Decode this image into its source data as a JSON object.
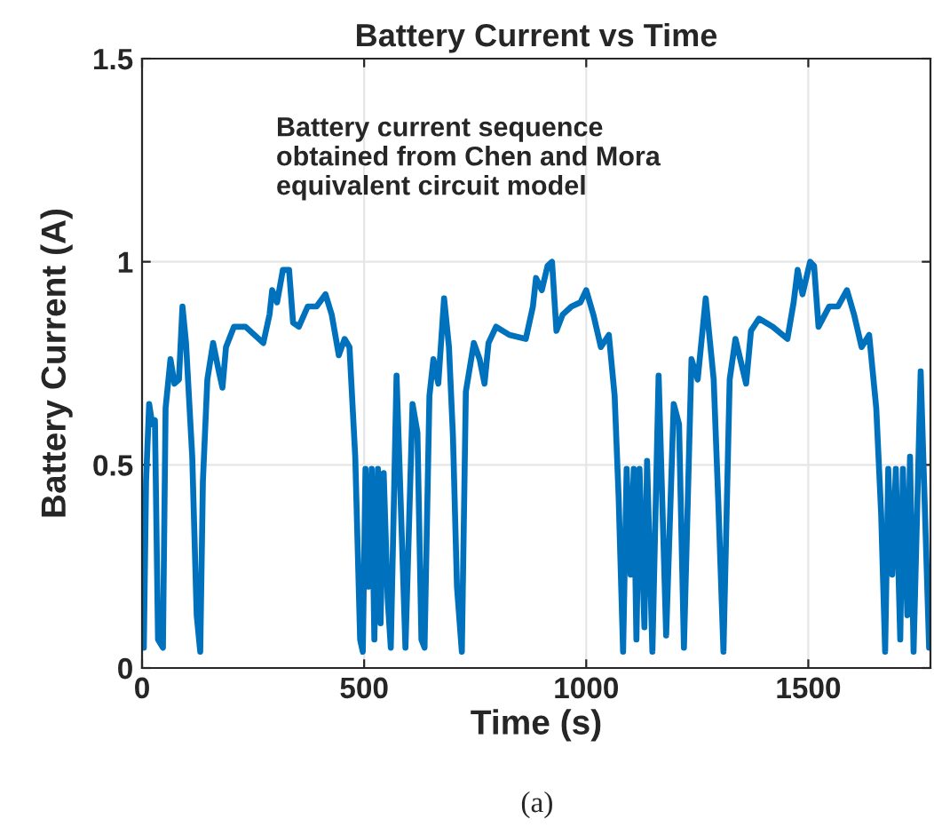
{
  "chart_data": {
    "type": "line",
    "title": "Battery Current vs Time",
    "xlabel": "Time (s)",
    "ylabel": "Battery Current (A)",
    "annotations": [
      "Battery current sequence\nobtained from Chen and Mora\nequivalent circuit model",
      "(a)"
    ],
    "xlim": [
      0,
      1775
    ],
    "ylim": [
      0,
      1.5
    ],
    "xticks": [
      0,
      500,
      1000,
      1500
    ],
    "yticks": [
      0,
      0.5,
      1,
      1.5
    ],
    "grid": true,
    "series": [
      {
        "color": "#0072bd",
        "x": [
          4,
          9,
          16,
          23,
          29,
          36,
          47,
          53,
          64,
          73,
          83,
          91,
          99,
          113,
          123,
          131,
          137,
          147,
          160,
          171,
          181,
          189,
          207,
          233,
          273,
          287,
          293,
          304,
          317,
          331,
          340,
          353,
          373,
          393,
          413,
          427,
          443,
          456,
          467,
          480,
          491,
          497,
          503,
          509,
          517,
          523,
          531,
          537,
          544,
          553,
          560,
          573,
          593,
          609,
          620,
          629,
          636,
          647,
          656,
          667,
          680,
          691,
          700,
          709,
          720,
          729,
          747,
          760,
          771,
          780,
          797,
          827,
          864,
          880,
          887,
          900,
          913,
          923,
          933,
          947,
          967,
          987,
          1000,
          1016,
          1033,
          1051,
          1064,
          1073,
          1083,
          1091,
          1100,
          1107,
          1113,
          1120,
          1131,
          1137,
          1149,
          1163,
          1180,
          1197,
          1209,
          1220,
          1237,
          1251,
          1269,
          1287,
          1297,
          1309,
          1323,
          1336,
          1360,
          1371,
          1389,
          1420,
          1453,
          1467,
          1476,
          1487,
          1504,
          1513,
          1523,
          1547,
          1567,
          1587,
          1603,
          1620,
          1637,
          1653,
          1664,
          1673,
          1680,
          1689,
          1697,
          1707,
          1713,
          1723,
          1729,
          1737,
          1753,
          1772
        ],
        "values": [
          0.05,
          0.46,
          0.65,
          0.6,
          0.61,
          0.07,
          0.05,
          0.64,
          0.76,
          0.7,
          0.71,
          0.89,
          0.8,
          0.52,
          0.13,
          0.04,
          0.46,
          0.71,
          0.8,
          0.74,
          0.69,
          0.79,
          0.84,
          0.84,
          0.8,
          0.87,
          0.93,
          0.9,
          0.98,
          0.98,
          0.85,
          0.84,
          0.89,
          0.89,
          0.92,
          0.87,
          0.77,
          0.81,
          0.79,
          0.52,
          0.07,
          0.04,
          0.49,
          0.2,
          0.49,
          0.07,
          0.49,
          0.11,
          0.48,
          0.17,
          0.05,
          0.72,
          0.05,
          0.65,
          0.58,
          0.07,
          0.05,
          0.67,
          0.76,
          0.7,
          0.91,
          0.79,
          0.57,
          0.2,
          0.04,
          0.68,
          0.8,
          0.76,
          0.7,
          0.8,
          0.84,
          0.82,
          0.81,
          0.89,
          0.96,
          0.93,
          0.99,
          1.0,
          0.83,
          0.87,
          0.89,
          0.9,
          0.93,
          0.87,
          0.79,
          0.82,
          0.67,
          0.42,
          0.04,
          0.49,
          0.23,
          0.49,
          0.07,
          0.49,
          0.1,
          0.51,
          0.04,
          0.72,
          0.08,
          0.65,
          0.6,
          0.05,
          0.76,
          0.71,
          0.91,
          0.71,
          0.42,
          0.04,
          0.71,
          0.81,
          0.7,
          0.83,
          0.86,
          0.84,
          0.81,
          0.9,
          0.98,
          0.92,
          1.0,
          0.99,
          0.84,
          0.89,
          0.89,
          0.93,
          0.87,
          0.79,
          0.82,
          0.64,
          0.38,
          0.04,
          0.49,
          0.23,
          0.49,
          0.07,
          0.49,
          0.13,
          0.52,
          0.04,
          0.73,
          0.05
        ]
      }
    ]
  }
}
